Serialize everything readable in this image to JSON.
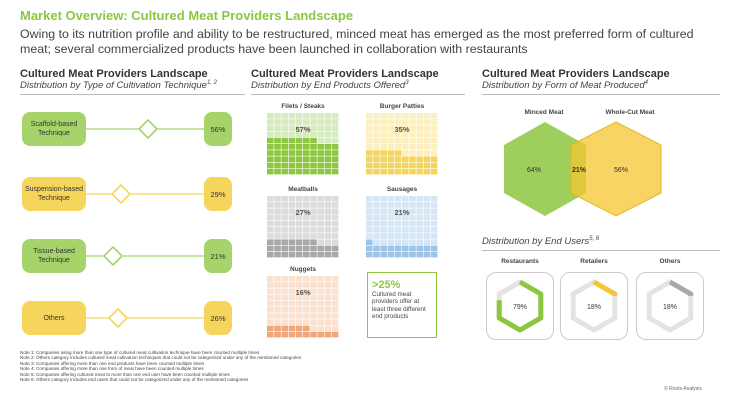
{
  "header": {
    "title": "Market Overview: Cultured Meat Providers Landscape",
    "subtitle": "Owing to its nutrition profile and ability to be restructured, minced meat has emerged as the most preferred form of cultured meat; several commercialized products have been launched in collaboration with restaurants"
  },
  "cultivation": {
    "title": "Cultured Meat Providers Landscape",
    "subtitle": "Distribution by Type of Cultivation Technique",
    "sup": "1, 2",
    "items": [
      {
        "label": "Scaffold-based Technique",
        "value": "56%",
        "fraction": 0.56,
        "color": "#a6d46a"
      },
      {
        "label": "Suspension-based Technique",
        "value": "29%",
        "fraction": 0.29,
        "color": "#f6d55c"
      },
      {
        "label": "Tissue-based Technique",
        "value": "21%",
        "fraction": 0.21,
        "color": "#a6d46a"
      },
      {
        "label": "Others",
        "value": "26%",
        "fraction": 0.26,
        "color": "#f6d55c"
      }
    ]
  },
  "products": {
    "title": "Cultured Meat Providers Landscape",
    "subtitle": "Distribution by End Products Offered",
    "sup": "3",
    "items": [
      {
        "label": "Filets / Steaks",
        "value": "57%",
        "fraction": 0.57,
        "light": "#d6ebc0",
        "dark": "#8dc63f"
      },
      {
        "label": "Burger Patties",
        "value": "35%",
        "fraction": 0.35,
        "light": "#fdf0c0",
        "dark": "#f6d55c"
      },
      {
        "label": "Meatballs",
        "value": "27%",
        "fraction": 0.27,
        "light": "#dcdcdc",
        "dark": "#a8a8a8"
      },
      {
        "label": "Sausages",
        "value": "21%",
        "fraction": 0.21,
        "light": "#d5e6f6",
        "dark": "#9cc3e8"
      },
      {
        "label": "Nuggets",
        "value": "16%",
        "fraction": 0.16,
        "light": "#fbe2d0",
        "dark": "#f2a77a"
      }
    ],
    "callout_big": ">25%",
    "callout_text": "Cultured meat providers offer at least three different end products"
  },
  "form": {
    "title": "Cultured Meat Providers Landscape",
    "subtitle": "Distribution by Form of Meat Produced",
    "sup": "4",
    "minced_label": "Minced Meat",
    "whole_label": "Whole-Cut Meat",
    "minced_value": "64%",
    "overlap_value": "21%",
    "whole_value": "56%",
    "minced_color": "#8dc63f",
    "whole_color": "#f6c531"
  },
  "end_users": {
    "subtitle": "Distribution by End Users",
    "sup": "5, 6",
    "items": [
      {
        "label": "Restaurants",
        "value": "79%",
        "fraction": 0.79,
        "color": "#8dc63f"
      },
      {
        "label": "Retailers",
        "value": "18%",
        "fraction": 0.18,
        "color": "#f6c531"
      },
      {
        "label": "Others",
        "value": "18%",
        "fraction": 0.18,
        "color": "#a8a8a8"
      }
    ]
  },
  "notes": [
    "Note 1: Companies using more than one type of cultured meat cultivation technique have been counted multiple times",
    "Note 2: Others category includes cultured meat cultivation techniques that could not be categorized under any of the mentioned categories",
    "Note 3: Companies offering more than one end products have been counted multiple times",
    "Note 4: Companies offering more than one form of meat have been counted multiple times",
    "Note 5: Companies offering cultured meat to more than one end user have been counted multiple times",
    "Note 6: Others category includes end users that could not be categorized under any of the mentioned categories"
  ],
  "footer": "© Roots Analysis"
}
